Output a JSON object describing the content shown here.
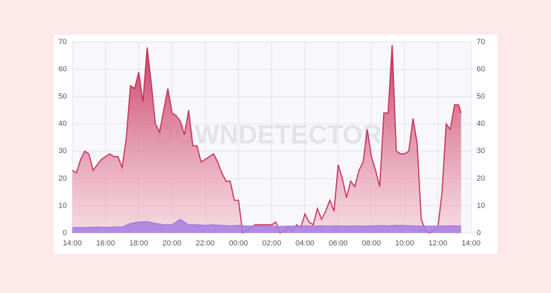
{
  "chart_data": {
    "type": "area",
    "watermark": "DOWNDETECTOR",
    "xlim": [
      0,
      24
    ],
    "xticks": [
      {
        "value": 0,
        "label": "14:00"
      },
      {
        "value": 2,
        "label": "16:00"
      },
      {
        "value": 4,
        "label": "18:00"
      },
      {
        "value": 6,
        "label": "20:00"
      },
      {
        "value": 8,
        "label": "22:00"
      },
      {
        "value": 10,
        "label": "00:00"
      },
      {
        "value": 12,
        "label": "02:00"
      },
      {
        "value": 14,
        "label": "04:00"
      },
      {
        "value": 16,
        "label": "06:00"
      },
      {
        "value": 18,
        "label": "08:00"
      },
      {
        "value": 20,
        "label": "10:00"
      },
      {
        "value": 22,
        "label": "12:00"
      },
      {
        "value": 24,
        "label": "14:00"
      }
    ],
    "ylim": [
      0,
      70
    ],
    "yticks": [
      0,
      10,
      20,
      30,
      40,
      50,
      60,
      70
    ],
    "y2lim": [
      0,
      70
    ],
    "y2ticks": [
      0,
      10,
      20,
      30,
      40,
      50,
      60,
      70
    ],
    "grid": true,
    "series": [
      {
        "color": "#c8305a",
        "x": [
          0,
          0.25,
          0.5,
          0.75,
          1,
          1.25,
          1.5,
          1.75,
          2,
          2.25,
          2.5,
          2.75,
          3,
          3.25,
          3.5,
          3.75,
          4,
          4.25,
          4.5,
          4.75,
          5,
          5.25,
          5.5,
          5.75,
          6,
          6.25,
          6.5,
          6.75,
          7,
          7.25,
          7.5,
          7.75,
          8,
          8.25,
          8.5,
          8.75,
          9,
          9.25,
          9.5,
          9.75,
          10,
          10.25,
          10.5,
          10.75,
          11,
          11.5,
          12,
          12.25,
          12.5,
          12.75,
          13,
          13.25,
          13.5,
          13.75,
          14,
          14.25,
          14.5,
          14.75,
          15,
          15.25,
          15.5,
          15.75,
          16,
          16.25,
          16.5,
          16.75,
          17,
          17.25,
          17.5,
          17.75,
          18,
          18.25,
          18.5,
          18.75,
          19,
          19.25,
          19.5,
          19.75,
          20,
          20.25,
          20.5,
          20.75,
          21,
          21.25,
          21.5,
          21.75,
          22,
          22.25,
          22.5,
          22.75,
          23,
          23.25,
          23.4
        ],
        "values": [
          23,
          22,
          27,
          30,
          29,
          23,
          25,
          27,
          28,
          29,
          28,
          28,
          24,
          35,
          54,
          53,
          59,
          48,
          68,
          55,
          40,
          37,
          45,
          53,
          44,
          43,
          41,
          36,
          45,
          32,
          32,
          26,
          27,
          28,
          29,
          26,
          22,
          19,
          19,
          12,
          12,
          0,
          1,
          2,
          3,
          3,
          3,
          4,
          0,
          1,
          2,
          1,
          3,
          2,
          7,
          4,
          3,
          9,
          5,
          8,
          12,
          8,
          25,
          20,
          13,
          19,
          17,
          23,
          26,
          38,
          28,
          23,
          17,
          44,
          44,
          69,
          30,
          29,
          29,
          30,
          42,
          33,
          5,
          1,
          0,
          1,
          2,
          15,
          40,
          38,
          47,
          47,
          44
        ]
      },
      {
        "color": "#a77de0",
        "x": [
          0,
          0.5,
          1,
          1.5,
          2,
          2.5,
          3,
          3.5,
          4,
          4.5,
          5,
          5.5,
          6,
          6.5,
          7,
          7.5,
          8,
          8.5,
          9,
          9.5,
          10,
          10.5,
          11,
          11.5,
          12,
          12.5,
          13,
          13.5,
          14,
          14.5,
          15,
          15.5,
          16,
          16.5,
          17,
          17.5,
          18,
          18.5,
          19,
          19.5,
          20,
          20.5,
          21,
          21.5,
          22,
          22.5,
          23,
          23.4
        ],
        "values": [
          2,
          2,
          2,
          2.2,
          2,
          2.2,
          2.2,
          3.5,
          4,
          4.2,
          3.5,
          3,
          3,
          5,
          3,
          3,
          2.8,
          3,
          2.8,
          2.6,
          2.8,
          2.5,
          2.5,
          2.6,
          2.5,
          2.4,
          2.5,
          2.5,
          2.6,
          2.5,
          2.6,
          2.5,
          2.6,
          2.5,
          2.6,
          2.5,
          2.6,
          2.7,
          2.6,
          2.8,
          2.7,
          2.6,
          2.5,
          2.5,
          2.5,
          2.6,
          2.6,
          2.5
        ]
      }
    ]
  }
}
